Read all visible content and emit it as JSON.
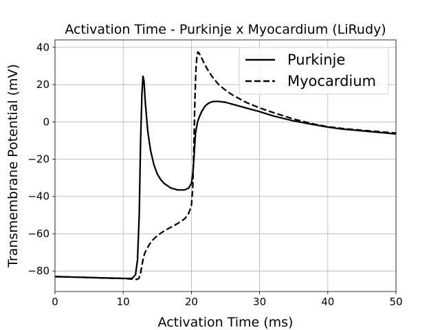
{
  "chart_data": {
    "type": "line",
    "title": "Activation Time - Purkinje x Myocardium (LiRudy)",
    "xlabel": "Activation Time (ms)",
    "ylabel": "Transmembrane Potential (mV)",
    "xlim": [
      0,
      50
    ],
    "ylim": [
      -91,
      44
    ],
    "xticks": [
      0,
      10,
      20,
      30,
      40,
      50
    ],
    "yticks": [
      -80,
      -60,
      -40,
      -20,
      0,
      20,
      40
    ],
    "xtick_labels": [
      "0",
      "10",
      "20",
      "30",
      "40",
      "50"
    ],
    "ytick_labels": [
      "−80",
      "−60",
      "−40",
      "−20",
      "0",
      "20",
      "40"
    ],
    "grid": true,
    "legend_position": "top-right",
    "series": [
      {
        "name": "Purkinje",
        "style": "solid",
        "color": "#000000",
        "x": [
          0,
          5,
          10,
          11.3,
          11.8,
          12.1,
          12.35,
          12.55,
          12.75,
          12.9,
          13.05,
          13.25,
          13.6,
          14.0,
          14.5,
          15.0,
          15.5,
          16.0,
          17.0,
          18.0,
          19.0,
          19.6,
          20.0,
          20.2,
          20.4,
          20.6,
          20.9,
          21.2,
          21.5,
          22.0,
          22.5,
          23.0,
          23.5,
          24.0,
          25.0,
          26.0,
          28.0,
          30.0,
          32.0,
          35.0,
          38.0,
          40.0,
          42.0,
          45.0,
          48.0,
          50.0
        ],
        "y": [
          -83,
          -83.5,
          -84,
          -84,
          -82,
          -74,
          -50,
          -10,
          15,
          24.5,
          22,
          10,
          -5,
          -15,
          -23,
          -28,
          -31,
          -33,
          -35.5,
          -36.5,
          -36.5,
          -35.5,
          -33,
          -28,
          -18,
          -6,
          0,
          3,
          5.5,
          8.5,
          10,
          10.8,
          11,
          11,
          10.5,
          9.5,
          7.5,
          5.5,
          3.2,
          0.5,
          -1.5,
          -2.8,
          -3.8,
          -4.8,
          -5.8,
          -6.5
        ]
      },
      {
        "name": "Myocardium",
        "style": "dashed",
        "color": "#000000",
        "x": [
          0,
          5,
          10,
          12.0,
          12.3,
          12.5,
          12.7,
          12.9,
          13.1,
          13.4,
          13.8,
          14.3,
          15.0,
          16.0,
          17.0,
          18.0,
          19.0,
          19.5,
          20.0,
          20.2,
          20.35,
          20.5,
          20.65,
          20.8,
          20.95,
          21.1,
          21.4,
          21.8,
          22.3,
          23.0,
          24.0,
          25.0,
          26.0,
          28.0,
          30.0,
          32.0,
          35.0,
          38.0,
          40.0,
          42.0,
          45.0,
          48.0,
          50.0
        ],
        "y": [
          -83,
          -83.5,
          -84,
          -84.5,
          -84,
          -82,
          -78,
          -74,
          -71,
          -68.5,
          -66,
          -63.5,
          -61,
          -58.5,
          -56.5,
          -54.5,
          -52,
          -50,
          -45,
          -35,
          -15,
          10,
          27,
          35,
          37.5,
          37,
          35,
          32,
          28.5,
          24.5,
          20,
          17,
          14.5,
          10.5,
          7.5,
          5,
          1.5,
          -1.2,
          -2.6,
          -3.5,
          -4.5,
          -5.4,
          -6
        ]
      }
    ]
  }
}
